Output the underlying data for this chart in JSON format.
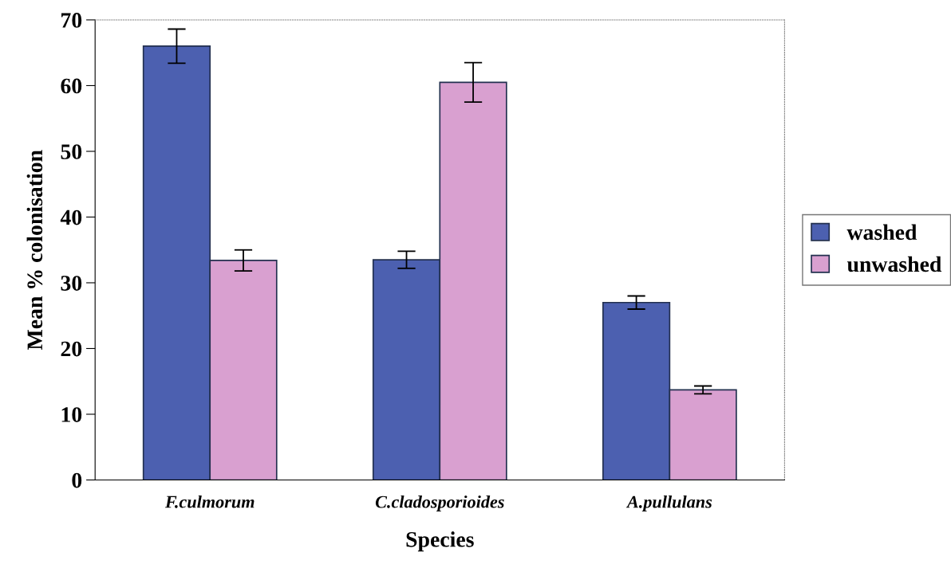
{
  "chart_data": {
    "type": "bar",
    "xlabel": "Species",
    "ylabel": "Mean % colonisation",
    "categories": [
      "F.culmorum",
      "C.cladosporioides",
      "A.pullulans"
    ],
    "series": [
      {
        "name": "washed",
        "color": "#4c60b0",
        "values": [
          66.0,
          33.5,
          27.0
        ],
        "errors": [
          2.6,
          1.3,
          1.0
        ]
      },
      {
        "name": "unwashed",
        "color": "#d9a0d0",
        "values": [
          33.4,
          60.5,
          13.7
        ],
        "errors": [
          1.6,
          3.0,
          0.6
        ]
      }
    ],
    "ylim": [
      0,
      70
    ],
    "yticks": [
      0,
      10,
      20,
      30,
      40,
      50,
      60,
      70
    ],
    "grid": false,
    "legend": "right"
  }
}
